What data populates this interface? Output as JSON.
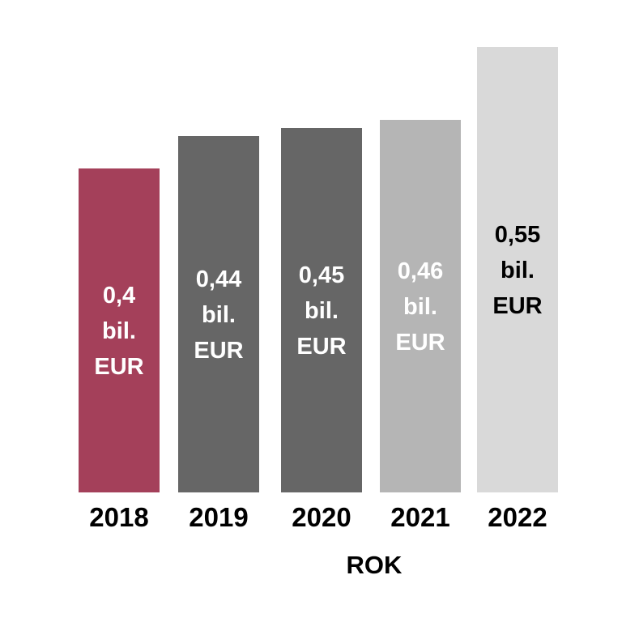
{
  "chart_data": {
    "type": "bar",
    "categories": [
      "2018",
      "2019",
      "2020",
      "2021",
      "2022"
    ],
    "values": [
      0.4,
      0.44,
      0.45,
      0.46,
      0.55
    ],
    "value_unit_lines": [
      "bil.",
      "EUR"
    ],
    "data_labels": [
      "0,4",
      "0,44",
      "0,45",
      "0,46",
      "0,55"
    ],
    "bar_colors": [
      "#a4405a",
      "#666666",
      "#666666",
      "#b5b5b5",
      "#d9d9d9"
    ],
    "label_colors": [
      "#ffffff",
      "#ffffff",
      "#ffffff",
      "#ffffff",
      "#000000"
    ],
    "xlabel": "ROK",
    "ylabel": "",
    "title": "",
    "grid": false,
    "legend": "none"
  }
}
